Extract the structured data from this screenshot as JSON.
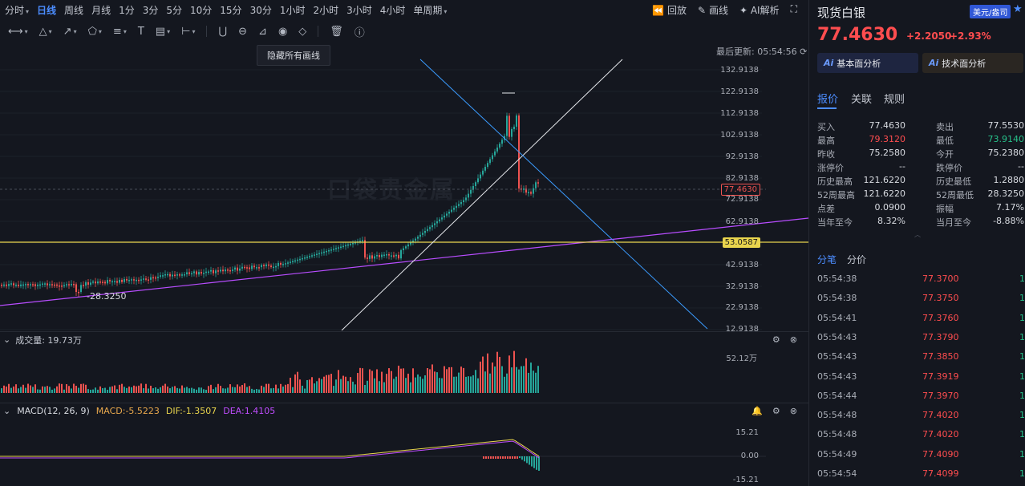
{
  "topbar": {
    "periods": [
      "分时",
      "日线",
      "周线",
      "月线",
      "1分",
      "3分",
      "5分",
      "10分",
      "15分",
      "30分",
      "1小时",
      "2小时",
      "3小时",
      "4小时",
      "单周期"
    ],
    "active_period": "日线",
    "replay": "回放",
    "draw": "画线",
    "ai": "AI解析"
  },
  "toolbar": {
    "tooltip": "隐藏所有画线"
  },
  "chart": {
    "last_update": "最后更新: 05:54:56",
    "watermark": "口袋贵金属",
    "price_labels": [
      "132.9138",
      "122.9138",
      "112.9138",
      "102.9138",
      "92.9138",
      "82.9138",
      "72.9138",
      "62.9138",
      "42.9138",
      "32.9138",
      "22.9138",
      "12.9138"
    ],
    "current_tag": "77.4630",
    "hline_tag": "53.0587",
    "low_annotation": "28.3250",
    "volume_header": "成交量: 19.73万",
    "volume_max": "52.12万",
    "macd_name": "MACD(12, 26, 9)",
    "macd_val": "MACD:-5.5223",
    "dif_val": "DIF:-1.3507",
    "dea_val": "DEA:1.4105",
    "macd_labels": [
      "15.21",
      "0.00",
      "-15.21"
    ],
    "colors": {
      "up": "#ef5350",
      "down": "#26a69a",
      "purple": "#b84dff",
      "yellow": "#e8d44d",
      "blue": "#3b9cff"
    }
  },
  "panel": {
    "title": "现货白银",
    "badge": "美元/盎司",
    "price": "77.4630",
    "change": "+2.2050",
    "percent": "+2.93%",
    "ai_fundamental": "基本面分析",
    "ai_technical": "技术面分析",
    "tabs": [
      "报价",
      "关联",
      "规则"
    ],
    "quotes": [
      [
        "买入",
        "77.4630",
        "卖出",
        "77.5530"
      ],
      [
        "最高",
        "79.3120",
        "最低",
        "73.9140"
      ],
      [
        "昨收",
        "75.2580",
        "今开",
        "75.2380"
      ],
      [
        "涨停价",
        "--",
        "跌停价",
        "--"
      ],
      [
        "历史最高",
        "121.6220",
        "历史最低",
        "1.2880"
      ],
      [
        "52周最高",
        "121.6220",
        "52周最低",
        "28.3250"
      ],
      [
        "点差",
        "0.0900",
        "振幅",
        "7.17%"
      ],
      [
        "当年至今",
        "8.32%",
        "当月至今",
        "-8.88%"
      ]
    ],
    "tick_tabs": [
      "分笔",
      "分价"
    ],
    "ticks": [
      [
        "05:54:38",
        "77.3700",
        "1"
      ],
      [
        "05:54:38",
        "77.3750",
        "1"
      ],
      [
        "05:54:41",
        "77.3760",
        "1"
      ],
      [
        "05:54:43",
        "77.3790",
        "1"
      ],
      [
        "05:54:43",
        "77.3850",
        "1"
      ],
      [
        "05:54:43",
        "77.3919",
        "1"
      ],
      [
        "05:54:44",
        "77.3970",
        "1"
      ],
      [
        "05:54:48",
        "77.4020",
        "1"
      ],
      [
        "05:54:48",
        "77.4020",
        "1"
      ],
      [
        "05:54:49",
        "77.4090",
        "1"
      ],
      [
        "05:54:54",
        "77.4099",
        "1"
      ]
    ]
  }
}
